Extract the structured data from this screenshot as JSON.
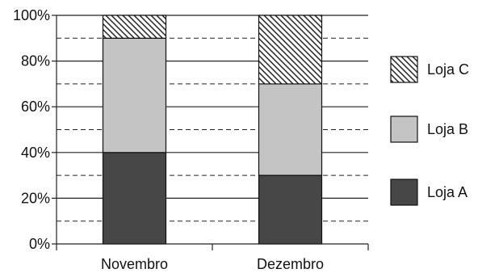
{
  "chart_data": {
    "type": "bar",
    "stacked": true,
    "normalized": true,
    "categories": [
      "Novembro",
      "Dezembro"
    ],
    "series": [
      {
        "name": "Loja A",
        "values": [
          40,
          30
        ],
        "color": "#474747",
        "pattern": "solid"
      },
      {
        "name": "Loja B",
        "values": [
          50,
          40
        ],
        "color": "#c4c4c4",
        "pattern": "solid"
      },
      {
        "name": "Loja C",
        "values": [
          10,
          30
        ],
        "color": "#ffffff",
        "pattern": "diagonal-hatch"
      }
    ],
    "ylim": [
      0,
      100
    ],
    "yticks": [
      0,
      20,
      40,
      60,
      80,
      100
    ],
    "ytick_labels": [
      "0%",
      "20%",
      "40%",
      "60%",
      "80%",
      "100%"
    ],
    "minor_gridlines": [
      10,
      30,
      50,
      70,
      90
    ],
    "legend_position": "right",
    "legend_order": [
      "Loja C",
      "Loja B",
      "Loja A"
    ],
    "title": "",
    "xlabel": "",
    "ylabel": ""
  }
}
